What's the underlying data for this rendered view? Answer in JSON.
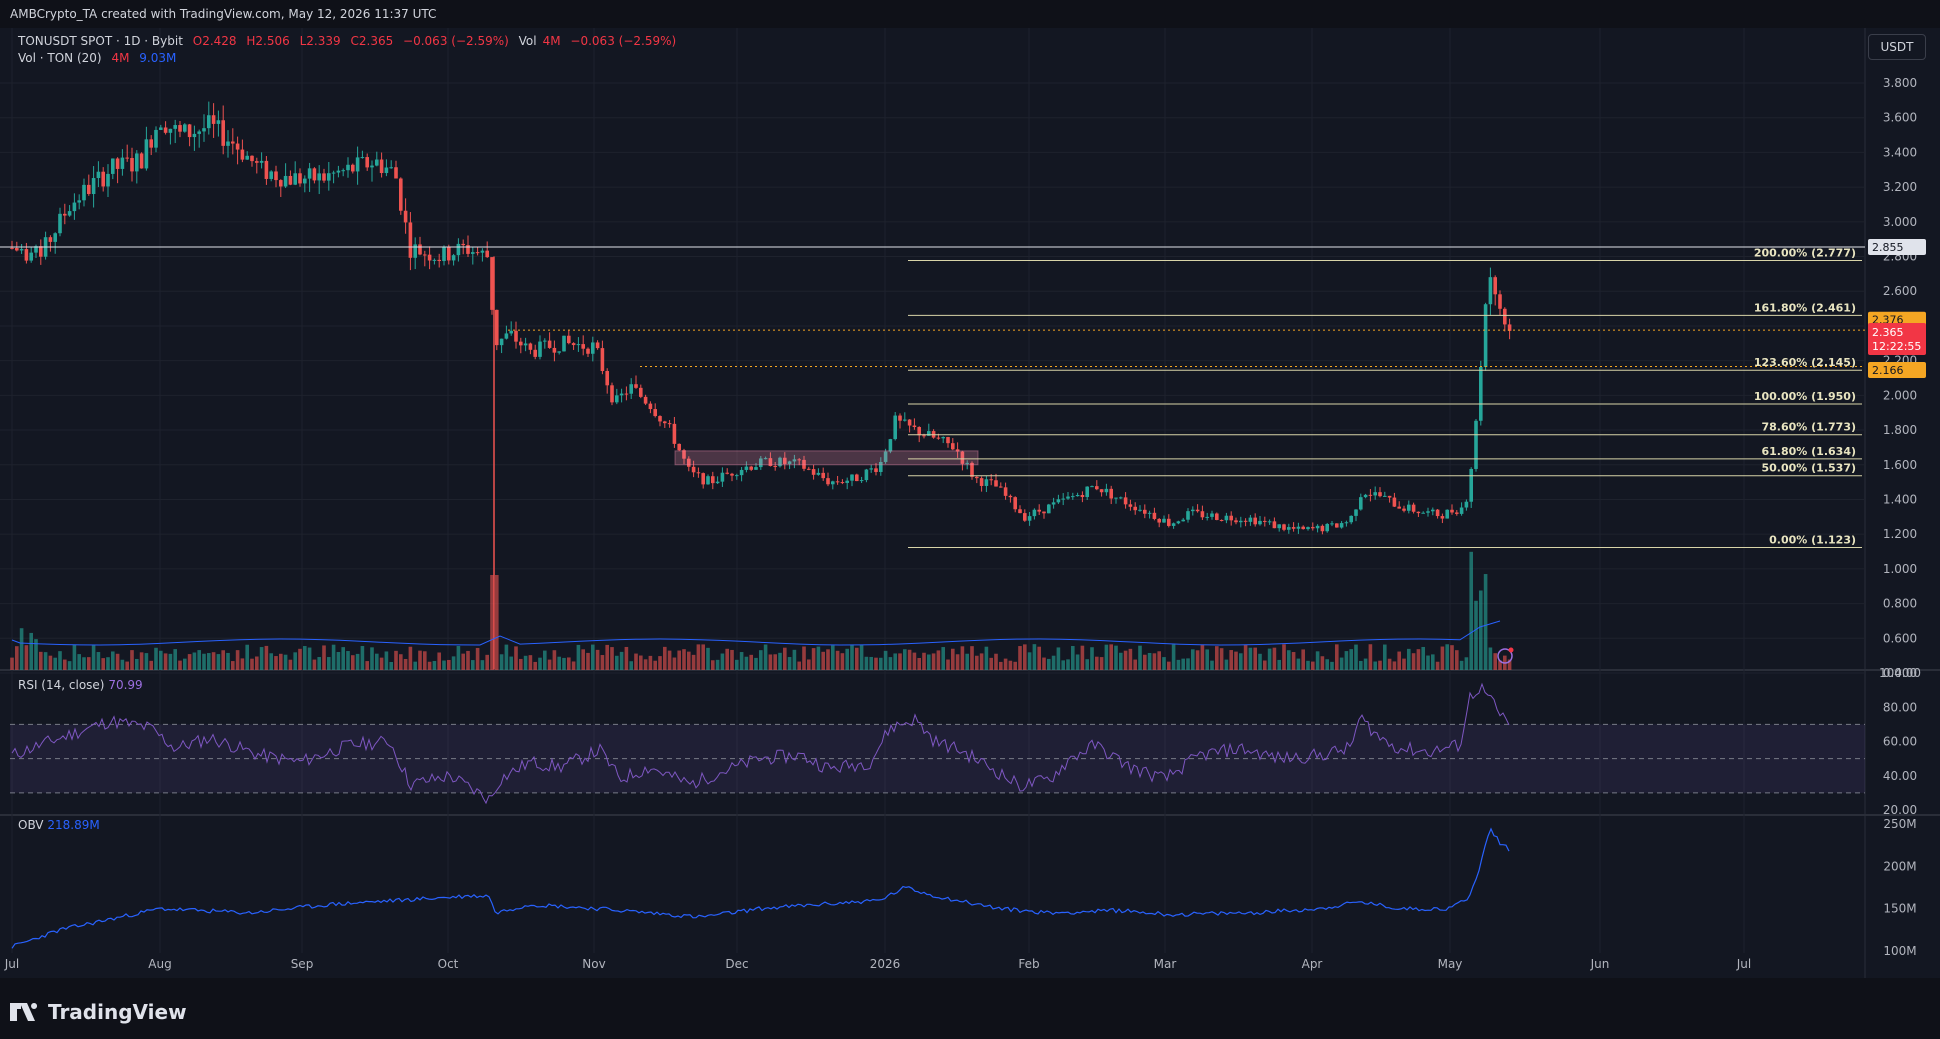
{
  "header": {
    "credit": "AMBCrypto_TA created with TradingView.com, May 12, 2026 11:37 UTC"
  },
  "legend": {
    "symbol": "TONUSDT SPOT · 1D · Bybit",
    "open": "O2.428",
    "high": "H2.506",
    "low": "L2.339",
    "close": "C2.365",
    "change": "−0.063 (−2.59%)",
    "vol_label": "Vol",
    "vol_value": "4M",
    "vol_change": "−0.063 (−2.59%)",
    "vol_ma_label": "Vol · TON (20)",
    "vol_ma_v1": "4M",
    "vol_ma_v2": "9.03M"
  },
  "currency_button": "USDT",
  "price_axis": [
    "3.800",
    "3.600",
    "3.400",
    "3.200",
    "3.000",
    "2.800",
    "2.600",
    "2.400",
    "2.200",
    "2.000",
    "1.800",
    "1.600",
    "1.400",
    "1.200",
    "1.000",
    "0.800",
    "0.600",
    "0.400"
  ],
  "time_axis": [
    "Jul",
    "Aug",
    "Sep",
    "Oct",
    "Nov",
    "Dec",
    "2026",
    "Feb",
    "Mar",
    "Apr",
    "May",
    "Jun",
    "Jul"
  ],
  "price_tags": {
    "high_line": "2.855",
    "fib_upper": "2.376",
    "current_price": "2.365",
    "countdown": "12:22:55",
    "fib_lower": "2.166"
  },
  "fib_levels": [
    {
      "label": "200.00% (2.777)",
      "price": 2.777
    },
    {
      "label": "161.80% (2.461)",
      "price": 2.461
    },
    {
      "label": "123.60% (2.145)",
      "price": 2.145
    },
    {
      "label": "100.00% (1.950)",
      "price": 1.95
    },
    {
      "label": "78.60% (1.773)",
      "price": 1.773
    },
    {
      "label": "61.80% (1.634)",
      "price": 1.634
    },
    {
      "label": "50.00% (1.537)",
      "price": 1.537
    },
    {
      "label": "0.00% (1.123)",
      "price": 1.123
    }
  ],
  "rsi": {
    "label": "RSI (14, close)",
    "value": "70.99",
    "axis": [
      "100.00",
      "80.00",
      "60.00",
      "40.00",
      "20.00"
    ],
    "upper_band": 70,
    "lower_band": 30
  },
  "obv": {
    "label": "OBV",
    "value": "218.89M",
    "axis": [
      "250M",
      "200M",
      "150M",
      "100M"
    ]
  },
  "colors": {
    "background": "#131722",
    "up": "#26a69a",
    "down": "#ef5350",
    "fib_line": "#d8d4a8",
    "dotted": "#f5a623",
    "rsi": "#7e57c2",
    "obv": "#2962ff",
    "current_tag": "#f23645",
    "orange_tag": "#f5a623"
  },
  "brand": "TradingView"
}
